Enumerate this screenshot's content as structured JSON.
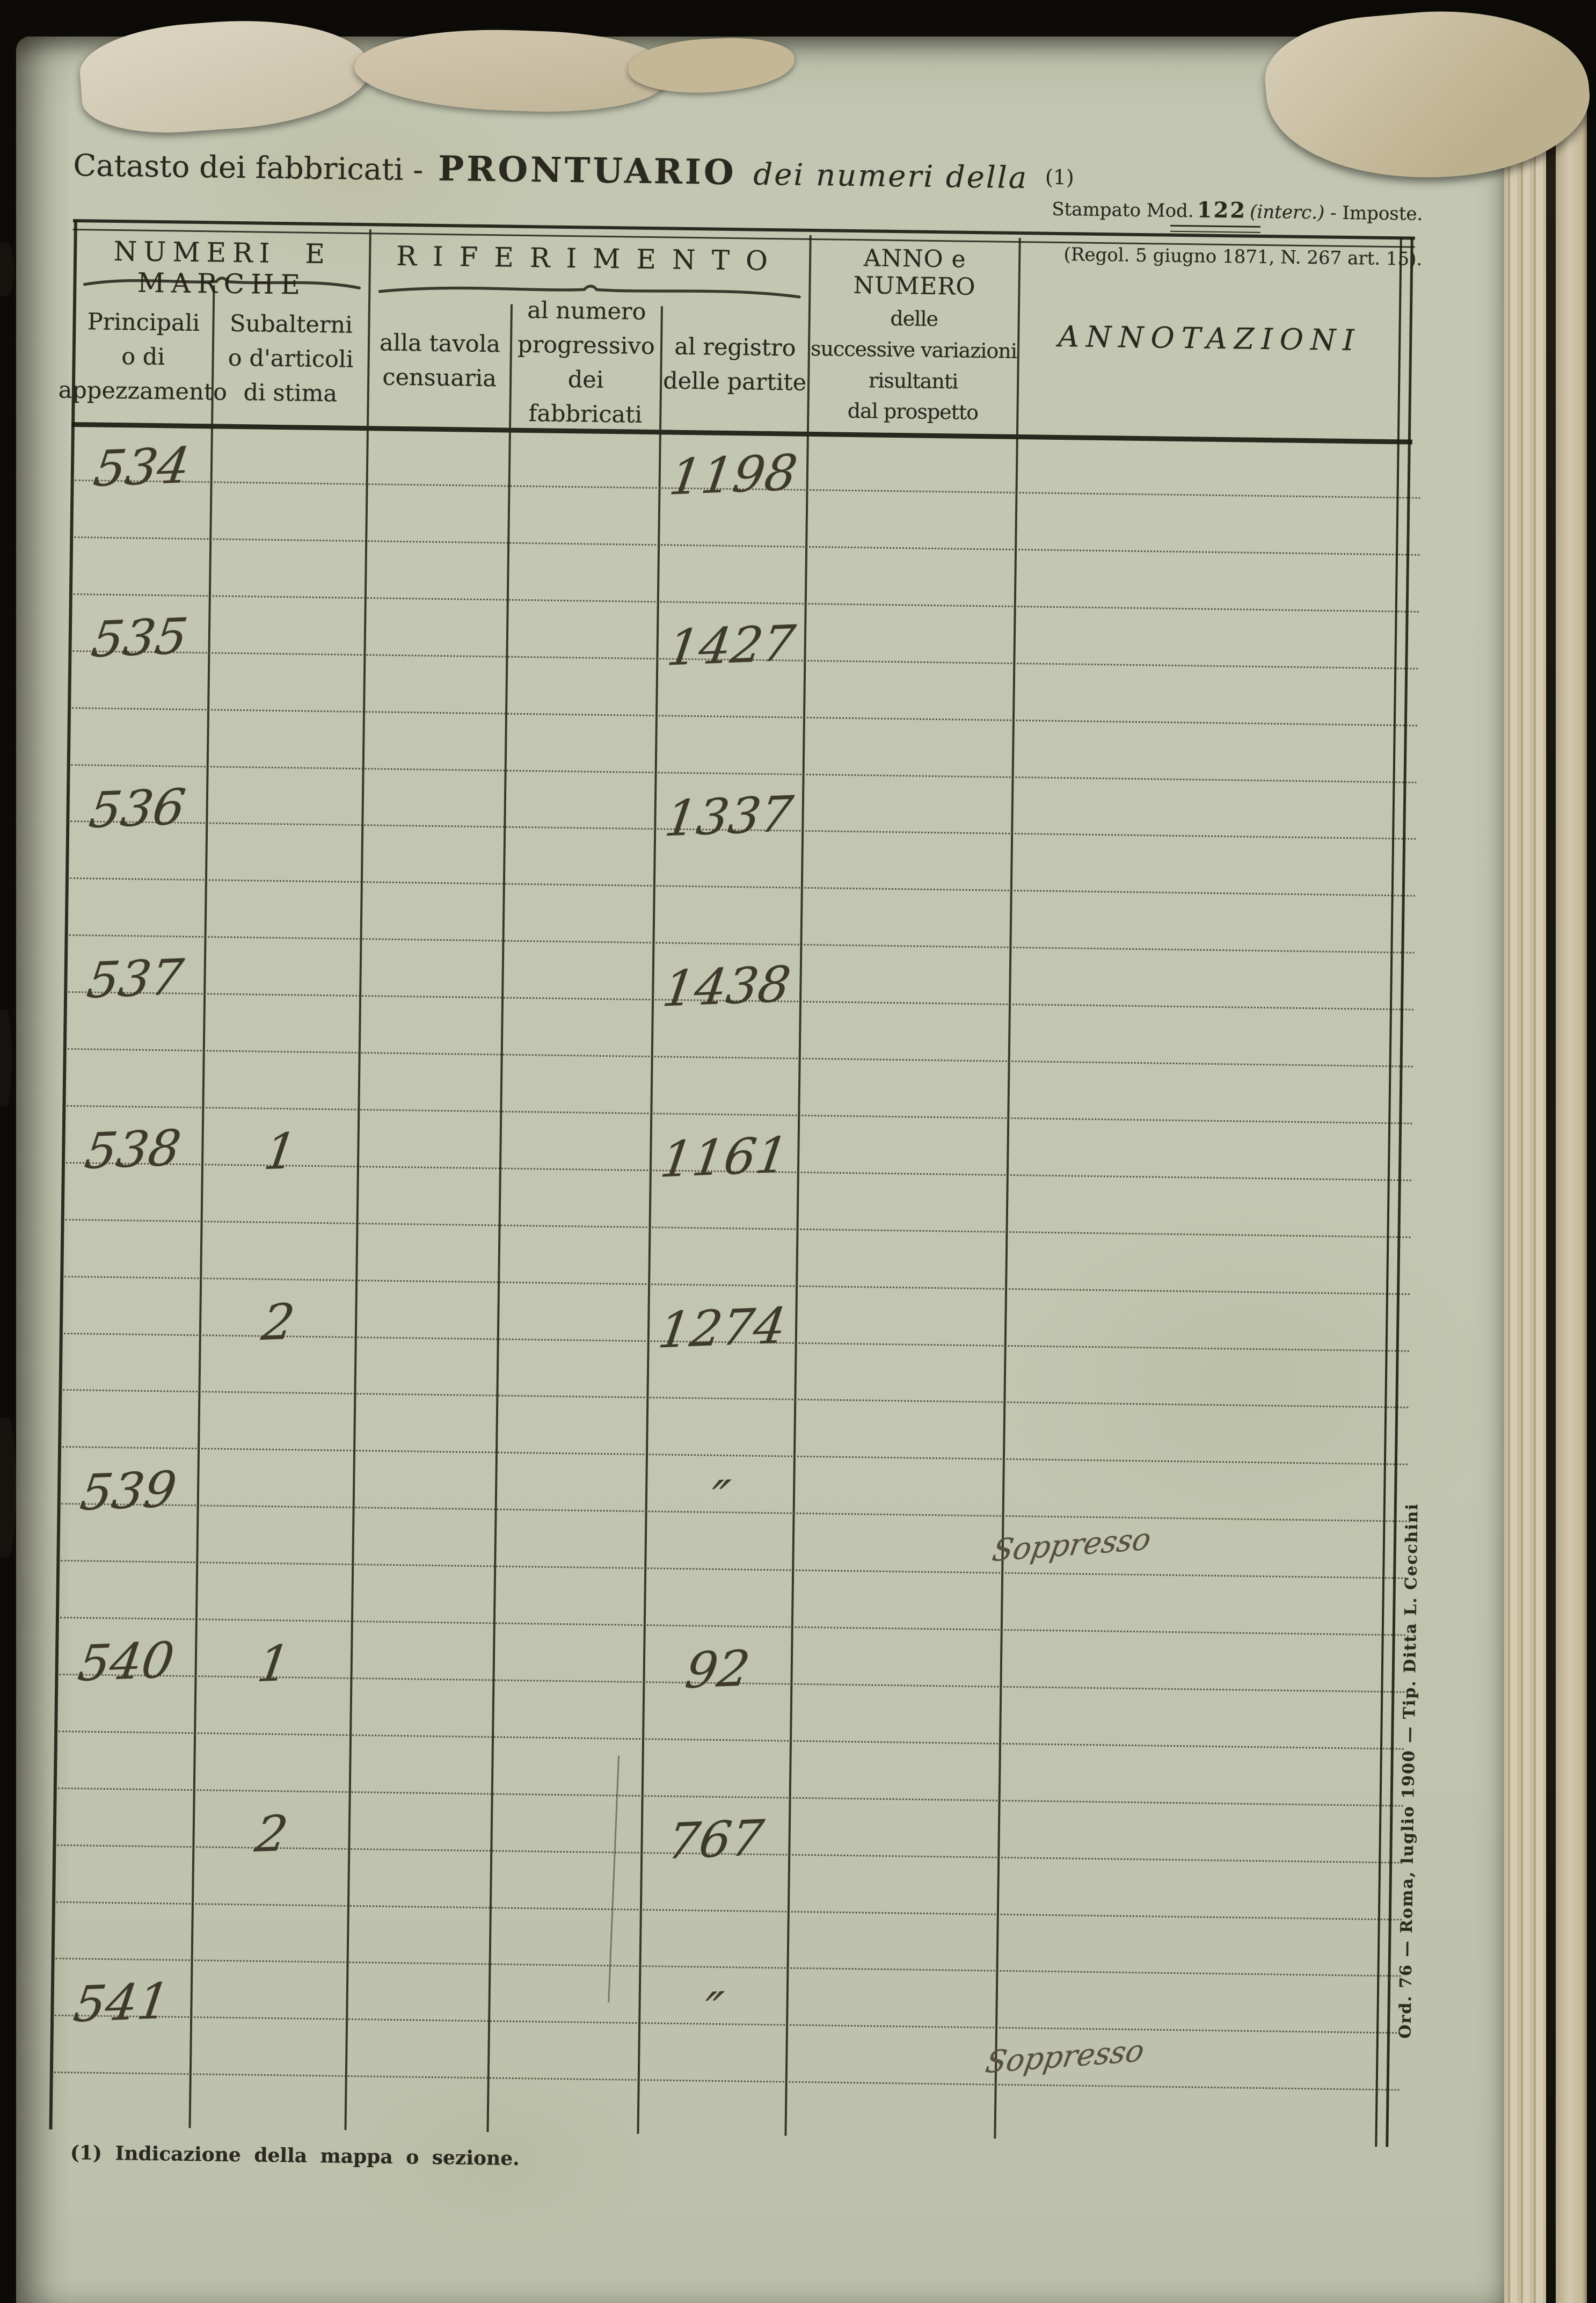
{
  "colors": {
    "paper": "#c2c6b0",
    "ink": "#2b291f",
    "handwriting_ink": "#3e392d",
    "pencil": "#56503d",
    "background": "#0c0b08",
    "page_stack_tan": "#cfc3a3"
  },
  "header": {
    "title_prefix": "Catasto dei fabbricati -",
    "title_main": "PRONTUARIO",
    "title_italic": "dei numeri della",
    "title_ref": "(1)",
    "stamp_line1_pre": "Stampato Mod.",
    "stamp_line1_num": "122",
    "stamp_line1_interc": "(interc.)",
    "stamp_line1_tail": " - Imposte.",
    "stamp_line2": "(Regol. 5 giugno 1871, N. 267 art. 15)."
  },
  "table": {
    "group1": "NUMERI E MARCHE",
    "group2": "RIFERIMENTO",
    "col_principali": [
      "Principali",
      "o di",
      "appezzamento"
    ],
    "col_subalterni": [
      "Subalterni",
      "o d'articoli",
      "di stima"
    ],
    "col_tavola": [
      "alla tavola",
      "censuaria"
    ],
    "col_numero": [
      "al numero",
      "progressivo",
      "dei fabbricati"
    ],
    "col_registro": [
      "al registro",
      "delle partite"
    ],
    "col_anno": [
      "ANNO e NUMERO",
      "delle",
      "successive variazioni",
      "risultanti",
      "dal prospetto"
    ],
    "col_annotazioni": "ANNOTAZIONI",
    "rows": [
      {
        "principali": "534",
        "subalterni": "",
        "registro": "1198",
        "annotazioni": ""
      },
      {
        "principali": "535",
        "subalterni": "",
        "registro": "1427",
        "annotazioni": ""
      },
      {
        "principali": "536",
        "subalterni": "",
        "registro": "1337",
        "annotazioni": ""
      },
      {
        "principali": "537",
        "subalterni": "",
        "registro": "1438",
        "annotazioni": ""
      },
      {
        "principali": "538",
        "subalterni": "1",
        "registro": "1161",
        "annotazioni": ""
      },
      {
        "principali": "",
        "subalterni": "2",
        "registro": "1274",
        "annotazioni": ""
      },
      {
        "principali": "539",
        "subalterni": "",
        "registro": "″",
        "annotazioni": "Soppresso"
      },
      {
        "principali": "540",
        "subalterni": "1",
        "registro": "92",
        "annotazioni": ""
      },
      {
        "principali": "",
        "subalterni": "2",
        "registro": "767",
        "annotazioni": ""
      },
      {
        "principali": "541",
        "subalterni": "",
        "registro": "″",
        "annotazioni": "Soppresso"
      }
    ]
  },
  "footer": {
    "footnote": "(1) Indicazione della mappa o sezione.",
    "imprint": "Ord. 76 — Roma, luglio 1900 — Tip. Ditta L. Cecchini"
  }
}
